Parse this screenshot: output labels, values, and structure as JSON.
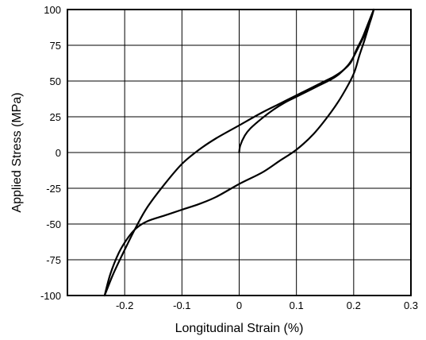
{
  "chart_data": {
    "type": "line",
    "xlabel": "Longitudinal Strain (%)",
    "ylabel": "Applied Stress (MPa)",
    "xlim": [
      -0.3,
      0.3
    ],
    "ylim": [
      -100,
      100
    ],
    "x_ticks": [
      -0.2,
      -0.1,
      0,
      0.1,
      0.2,
      0.3
    ],
    "x_tick_labels": [
      "-0.2",
      "-0.1",
      "0",
      "0.1",
      "0.2",
      "0.3"
    ],
    "y_ticks": [
      100,
      75,
      50,
      25,
      0,
      -25,
      -50,
      -75,
      -100
    ],
    "y_tick_labels": [
      "100",
      "75",
      "50",
      "25",
      "0",
      "-25",
      "-50",
      "-75",
      "-100"
    ],
    "grid": true,
    "legend": "none",
    "line_color": "#000000",
    "series": [
      {
        "x": [
          0.0,
          0.002,
          0.01,
          0.02,
          0.04,
          0.06,
          0.08,
          0.1,
          0.12,
          0.14,
          0.16,
          0.175,
          0.19,
          0.2,
          0.21,
          0.22,
          0.23,
          0.235
        ],
        "y": [
          0,
          5,
          12,
          17,
          24,
          30,
          35,
          39,
          43,
          47,
          51,
          55,
          61,
          67,
          75,
          83,
          93,
          100
        ]
      },
      {
        "x": [
          0.235,
          0.225,
          0.215,
          0.205,
          0.195,
          0.18,
          0.165,
          0.15,
          0.13,
          0.1,
          0.07,
          0.04,
          0.0,
          -0.04,
          -0.07,
          -0.1,
          -0.13,
          -0.16,
          -0.18,
          -0.2,
          -0.22,
          -0.235
        ],
        "y": [
          100,
          90,
          80,
          72,
          63,
          57,
          53,
          50,
          46,
          40,
          34,
          28,
          19,
          10,
          2,
          -8,
          -22,
          -38,
          -52,
          -68,
          -85,
          -100
        ]
      },
      {
        "x": [
          -0.235,
          -0.225,
          -0.21,
          -0.195,
          -0.18,
          -0.16,
          -0.13,
          -0.1,
          -0.07,
          -0.04,
          0.0,
          0.04,
          0.07,
          0.1,
          0.13,
          0.16,
          0.18,
          0.2,
          0.21,
          0.22,
          0.235
        ],
        "y": [
          -100,
          -85,
          -70,
          -60,
          -53,
          -48,
          -44,
          -40,
          -36,
          -31,
          -22,
          -14,
          -6,
          2,
          13,
          28,
          40,
          55,
          68,
          80,
          100
        ]
      }
    ]
  }
}
